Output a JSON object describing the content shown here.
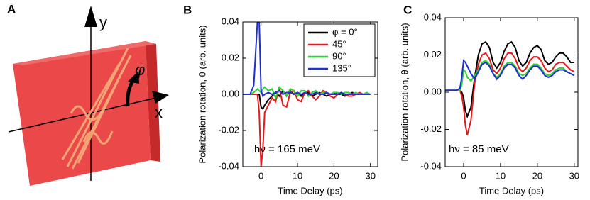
{
  "diagram": {
    "panel_label": "A",
    "y_axis_label": "y",
    "x_axis_label": "x",
    "angle_label": "φ"
  },
  "chart_data": [
    {
      "type": "line",
      "panel_label": "B",
      "annotation": "hν = 165 meV",
      "xlabel": "Time Delay (ps)",
      "ylabel": "Polarization rotation, θ (arb. units)",
      "xlim": [
        -5,
        32
      ],
      "xticks": [
        0,
        10,
        20,
        30
      ],
      "ylim": [
        -0.04,
        0.04
      ],
      "yticks": [
        -0.04,
        -0.02,
        {
          "value": 0,
          "label": "0.00"
        },
        0.02,
        0.04
      ],
      "legend": "upper right",
      "x": [
        -5,
        -4,
        -3,
        -2,
        -1,
        -0.5,
        0,
        0.5,
        1,
        2,
        3,
        4,
        5,
        6,
        7,
        8,
        9,
        10,
        11,
        12,
        13,
        14,
        15,
        16,
        17,
        18,
        19,
        20,
        21,
        22,
        23,
        24,
        25,
        26,
        27,
        28,
        29,
        30
      ],
      "series": [
        {
          "name": "φ = 0°",
          "color": "#000000",
          "values": [
            0,
            0,
            0,
            0,
            0,
            0,
            -0.007,
            -0.008,
            -0.006,
            -0.003,
            -0.001,
            0.001,
            -0.001,
            0.002,
            -0.001,
            0.002,
            0,
            0.001,
            -0.001,
            0.001,
            0.001,
            -0.001,
            0,
            0.001,
            0,
            -0.001,
            0,
            0.001,
            0,
            0,
            -0.001,
            0,
            0.001,
            0,
            0,
            0,
            0,
            0
          ]
        },
        {
          "name": "45°",
          "color": "#e41a1c",
          "values": [
            0,
            0,
            0,
            0,
            0,
            -0.01,
            -0.04,
            -0.03,
            -0.01,
            -0.006,
            -0.002,
            -0.004,
            0.004,
            -0.006,
            -0.007,
            0.001,
            0.002,
            -0.003,
            -0.004,
            0.001,
            0.002,
            -0.001,
            -0.003,
            -0.001,
            0.002,
            0.001,
            -0.001,
            -0.002,
            0,
            0.001,
            0,
            -0.001,
            -0.001,
            0,
            0.001,
            0,
            0,
            0
          ]
        },
        {
          "name": "90°",
          "color": "#2fd12f",
          "values": [
            0,
            0,
            0,
            0.001,
            0.003,
            0.002,
            0.001,
            0.003,
            0.004,
            0.002,
            0.003,
            -0.002,
            0.004,
            0.002,
            -0.001,
            0.003,
            0.002,
            -0.001,
            0.002,
            0.002,
            -0.001,
            0.001,
            0.002,
            0,
            0.001,
            0.001,
            0,
            0.001,
            0.001,
            0,
            0.001,
            0.001,
            0,
            0.001,
            0,
            0,
            0.001,
            0
          ]
        },
        {
          "name": "135°",
          "color": "#1f2fd6",
          "values": [
            0,
            0,
            0,
            0.005,
            0.04,
            0.04,
            0.002,
            -0.001,
            0,
            0.001,
            0,
            0.001,
            0.002,
            0,
            0.001,
            0.001,
            0,
            0.001,
            0,
            0.001,
            0,
            0,
            0.001,
            0,
            0,
            0.001,
            0,
            0,
            0,
            0.001,
            0,
            0,
            0,
            0,
            0,
            0,
            0,
            0
          ]
        }
      ]
    },
    {
      "type": "line",
      "panel_label": "C",
      "annotation": "hν = 85 meV",
      "xlabel": "Time Delay (ps)",
      "ylabel": "Polarization rotation, θ (arb. units)",
      "xlim": [
        -5,
        31
      ],
      "xticks": [
        0,
        10,
        20,
        30
      ],
      "ylim": [
        -0.04,
        0.04
      ],
      "yticks": [
        -0.04,
        -0.02,
        {
          "value": 0,
          "label": "0.00"
        },
        0.02,
        0.04
      ],
      "x": [
        -5,
        -4,
        -3,
        -2,
        -1,
        -0.5,
        0,
        0.5,
        1,
        2,
        3,
        4,
        5,
        6,
        7,
        8,
        9,
        10,
        11,
        12,
        13,
        14,
        15,
        16,
        17,
        18,
        19,
        20,
        21,
        22,
        23,
        24,
        25,
        26,
        27,
        28,
        29,
        30
      ],
      "series": [
        {
          "color": "#000000",
          "values": [
            0.001,
            0.001,
            0.001,
            0.001,
            0.001,
            0,
            -0.003,
            -0.01,
            -0.013,
            -0.008,
            0.008,
            0.02,
            0.026,
            0.027,
            0.024,
            0.016,
            0.013,
            0.016,
            0.022,
            0.026,
            0.027,
            0.024,
            0.017,
            0.014,
            0.016,
            0.021,
            0.024,
            0.025,
            0.023,
            0.017,
            0.015,
            0.016,
            0.019,
            0.021,
            0.021,
            0.019,
            0.016,
            0.016
          ]
        },
        {
          "color": "#e41a1c",
          "values": [
            0.001,
            0.001,
            0.001,
            0.001,
            0.001,
            -0.002,
            -0.008,
            -0.018,
            -0.023,
            -0.015,
            0.005,
            0.015,
            0.02,
            0.021,
            0.018,
            0.012,
            0.01,
            0.013,
            0.018,
            0.021,
            0.021,
            0.018,
            0.013,
            0.011,
            0.013,
            0.017,
            0.019,
            0.019,
            0.017,
            0.013,
            0.011,
            0.012,
            0.015,
            0.016,
            0.016,
            0.014,
            0.012,
            0.011
          ]
        },
        {
          "color": "#2fd12f",
          "values": [
            0.001,
            0.001,
            0.001,
            0.001,
            0.001,
            0.004,
            0.012,
            0.011,
            0.008,
            0.006,
            0.009,
            0.012,
            0.016,
            0.017,
            0.015,
            0.01,
            0.008,
            0.01,
            0.014,
            0.016,
            0.016,
            0.014,
            0.01,
            0.009,
            0.01,
            0.013,
            0.015,
            0.015,
            0.013,
            0.01,
            0.009,
            0.01,
            0.012,
            0.013,
            0.013,
            0.011,
            0.01,
            0.009
          ]
        },
        {
          "color": "#1f2fd6",
          "values": [
            0.001,
            0.001,
            0.001,
            0.001,
            0.002,
            0.008,
            0.017,
            0.016,
            0.014,
            0.01,
            0.007,
            0.011,
            0.015,
            0.016,
            0.014,
            0.01,
            0.007,
            0.009,
            0.013,
            0.015,
            0.015,
            0.013,
            0.009,
            0.007,
            0.009,
            0.012,
            0.014,
            0.014,
            0.012,
            0.009,
            0.008,
            0.009,
            0.011,
            0.012,
            0.012,
            0.011,
            0.01,
            0.009
          ]
        }
      ]
    }
  ]
}
